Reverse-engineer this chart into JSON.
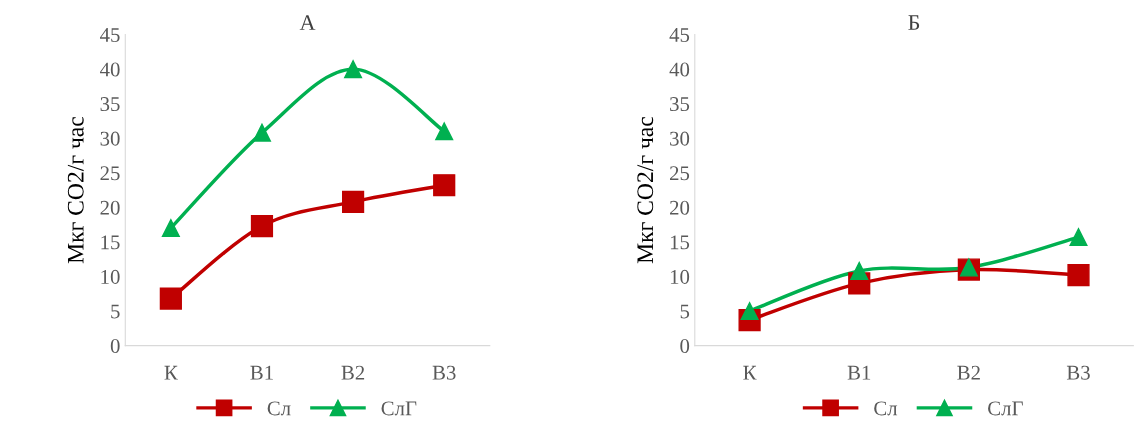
{
  "chart_data": [
    {
      "type": "line",
      "title": "А",
      "ylabel": "Мкг CO2/г час",
      "categories": [
        "К",
        "В1",
        "В2",
        "В3"
      ],
      "ylim": [
        0,
        45
      ],
      "yticks": [
        0,
        5,
        10,
        15,
        20,
        25,
        30,
        35,
        40,
        45
      ],
      "grid": false,
      "legend": "bottom",
      "series": [
        {
          "name": "Сл",
          "color": "#c00000",
          "marker": "square",
          "values": [
            6.8,
            17.3,
            20.8,
            23.2
          ]
        },
        {
          "name": "СлГ",
          "color": "#00b050",
          "marker": "triangle",
          "values": [
            17.0,
            30.8,
            40.0,
            31.0
          ]
        }
      ]
    },
    {
      "type": "line",
      "title": "Б",
      "ylabel": "Мкг CO2/г час",
      "categories": [
        "К",
        "В1",
        "В2",
        "В3"
      ],
      "ylim": [
        0,
        45
      ],
      "yticks": [
        0,
        5,
        10,
        15,
        20,
        25,
        30,
        35,
        40,
        45
      ],
      "grid": false,
      "legend": "bottom",
      "series": [
        {
          "name": "Сл",
          "color": "#c00000",
          "marker": "square",
          "values": [
            3.7,
            9.0,
            11.0,
            10.2
          ]
        },
        {
          "name": "СлГ",
          "color": "#00b050",
          "marker": "triangle",
          "values": [
            5.0,
            10.8,
            11.3,
            15.7
          ]
        }
      ]
    }
  ]
}
